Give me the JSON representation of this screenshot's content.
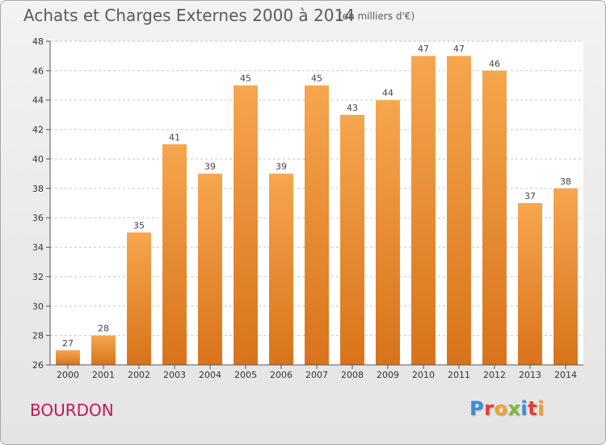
{
  "header": {
    "title": "Achats et Charges Externes 2000 à 2014",
    "subtitle": "(en milliers d'€)"
  },
  "footer": {
    "commune": "BOURDON",
    "logo_text": "Proxiti",
    "logo_colors": [
      "#3a8fd8",
      "#e63c2f",
      "#f2a02c",
      "#7ab83a",
      "#3a8fd8",
      "#e63c2f",
      "#f2a02c"
    ]
  },
  "colors": {
    "bar_top": "#f6a64e",
    "bar_bottom": "#d8731a",
    "grid": "#c8c8c8",
    "axis": "#555555"
  },
  "chart_data": {
    "type": "bar",
    "title": "Achats et Charges Externes 2000 à 2014",
    "subtitle": "(en milliers d'€)",
    "categories": [
      "2000",
      "2001",
      "2002",
      "2003",
      "2004",
      "2005",
      "2006",
      "2007",
      "2008",
      "2009",
      "2010",
      "2011",
      "2012",
      "2013",
      "2014"
    ],
    "values": [
      27,
      28,
      35,
      41,
      39,
      45,
      39,
      45,
      43,
      44,
      47,
      47,
      46,
      37,
      38
    ],
    "ylim": [
      26,
      48
    ],
    "yticks": [
      26,
      28,
      30,
      32,
      34,
      36,
      38,
      40,
      42,
      44,
      46,
      48
    ],
    "grid": true,
    "xlabel": "",
    "ylabel": ""
  }
}
